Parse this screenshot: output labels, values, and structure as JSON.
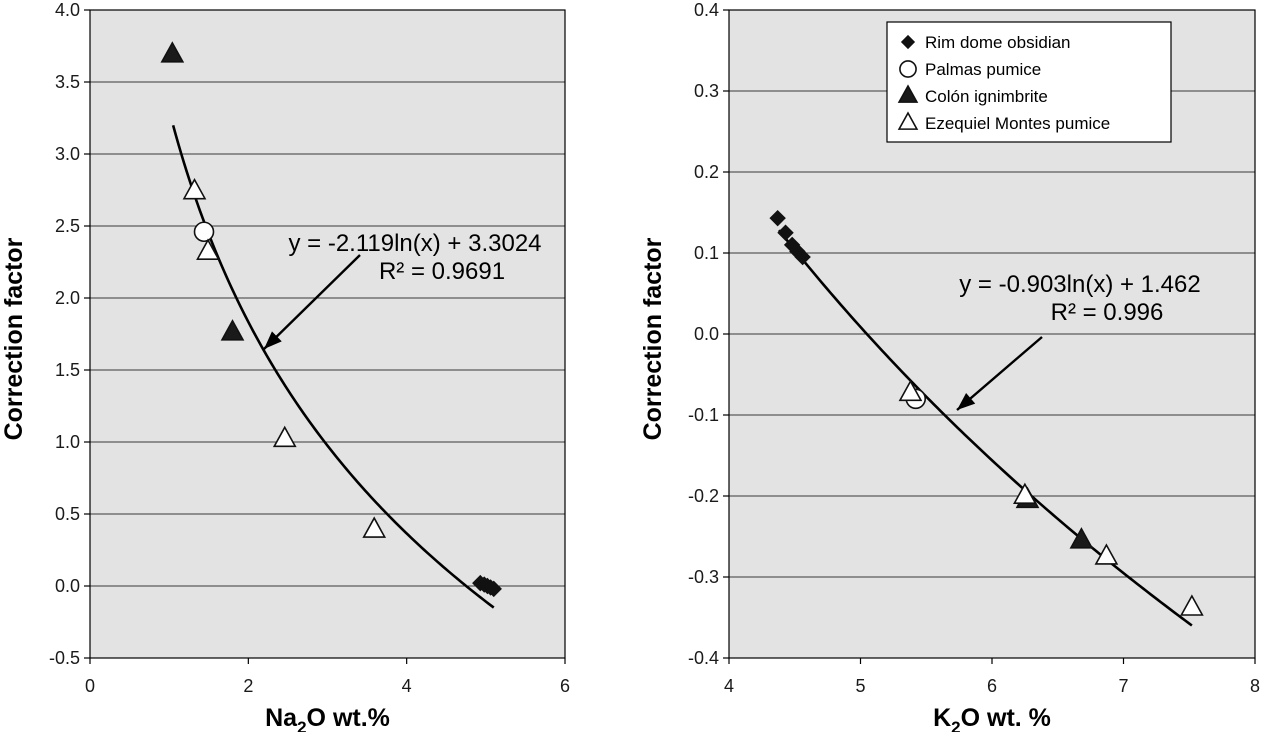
{
  "chart_data": [
    {
      "id": "left",
      "type": "scatter",
      "xlabel_main": "Na",
      "xlabel_sub": "2",
      "xlabel_rest": "O wt.%",
      "ylabel": "Correction factor",
      "xlim": [
        0,
        6
      ],
      "ylim": [
        -0.5,
        4.0
      ],
      "xticks": [
        0,
        2,
        4,
        6
      ],
      "xtick_labels": [
        "0",
        "2",
        "4",
        "6"
      ],
      "yticks": [
        -0.5,
        0.0,
        0.5,
        1.0,
        1.5,
        2.0,
        2.5,
        3.0,
        3.5,
        4.0
      ],
      "ytick_labels": [
        "-0.5",
        "0.0",
        "0.5",
        "1.0",
        "1.5",
        "2.0",
        "2.5",
        "3.0",
        "3.5",
        "4.0"
      ],
      "fit": {
        "a": -2.119,
        "b": 3.3024,
        "x_range": [
          1.05,
          5.1
        ]
      },
      "equation_line1": "y = -2.119ln(x) + 3.3024",
      "equation_line2": "R² = 0.9691",
      "series": [
        {
          "name": "Rim dome obsidian",
          "marker": "diamond",
          "x": [
            4.93,
            4.98,
            5.02,
            5.06,
            5.1
          ],
          "y": [
            0.02,
            0.01,
            0.0,
            -0.01,
            -0.02
          ]
        },
        {
          "name": "Palmas pumice",
          "marker": "open-circle",
          "x": [
            1.44
          ],
          "y": [
            2.46
          ]
        },
        {
          "name": "Colón ignimbrite",
          "marker": "filled-triangle",
          "x": [
            1.04,
            1.8
          ],
          "y": [
            3.69,
            1.76
          ]
        },
        {
          "name": "Ezequiel Montes pumice",
          "marker": "open-triangle",
          "x": [
            1.32,
            1.49,
            2.46,
            3.59
          ],
          "y": [
            2.74,
            2.32,
            1.02,
            0.39
          ]
        }
      ]
    },
    {
      "id": "right",
      "type": "scatter",
      "xlabel_main": "K",
      "xlabel_sub": "2",
      "xlabel_rest": "O wt. %",
      "ylabel": "Correction factor",
      "xlim": [
        4,
        8
      ],
      "ylim": [
        -0.4,
        0.4
      ],
      "xticks": [
        4,
        5,
        6,
        7,
        8
      ],
      "xtick_labels": [
        "4",
        "5",
        "6",
        "7",
        "8"
      ],
      "yticks": [
        -0.4,
        -0.3,
        -0.2,
        -0.1,
        0.0,
        0.1,
        0.2,
        0.3,
        0.4
      ],
      "ytick_labels": [
        "-0.4",
        "-0.3",
        "-0.2",
        "-0.1",
        "0.0",
        "0.1",
        "0.2",
        "0.3",
        "0.4"
      ],
      "fit": {
        "a": -0.903,
        "b": 1.462,
        "x_range": [
          4.38,
          7.52
        ]
      },
      "equation_line1": "y = -0.903ln(x) + 1.462",
      "equation_line2": "R² = 0.996",
      "legend": {
        "position": "top-center",
        "items": [
          {
            "label": "Rim dome obsidian",
            "marker": "diamond"
          },
          {
            "label": "Palmas pumice",
            "marker": "open-circle"
          },
          {
            "label": "Colón ignimbrite",
            "marker": "filled-triangle"
          },
          {
            "label": "Ezequiel Montes pumice",
            "marker": "open-triangle"
          }
        ]
      },
      "series": [
        {
          "name": "Rim dome obsidian",
          "marker": "diamond",
          "x": [
            4.37,
            4.43,
            4.48,
            4.52,
            4.56
          ],
          "y": [
            0.143,
            0.125,
            0.11,
            0.102,
            0.095
          ]
        },
        {
          "name": "Palmas pumice",
          "marker": "open-circle",
          "x": [
            5.42
          ],
          "y": [
            -0.08
          ]
        },
        {
          "name": "Colón ignimbrite",
          "marker": "filled-triangle",
          "x": [
            6.27,
            6.68
          ],
          "y": [
            -0.205,
            -0.255
          ]
        },
        {
          "name": "Ezequiel Montes pumice",
          "marker": "open-triangle",
          "x": [
            5.38,
            6.25,
            6.87,
            7.52
          ],
          "y": [
            -0.073,
            -0.2,
            -0.275,
            -0.338
          ]
        }
      ]
    }
  ]
}
